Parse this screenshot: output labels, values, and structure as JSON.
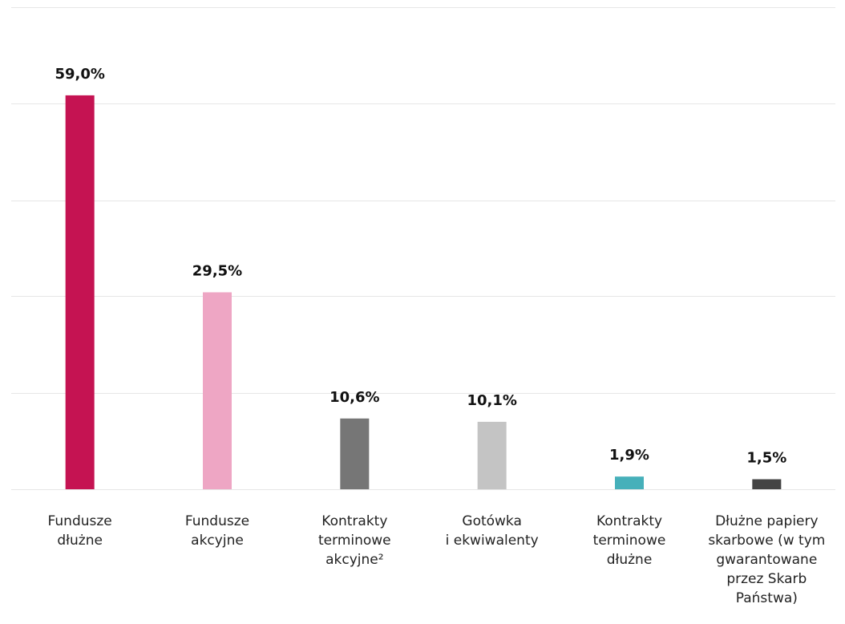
{
  "chart_data": {
    "type": "bar",
    "categories": [
      "Fundusze\ndłużne",
      "Fundusze\nakcyjne",
      "Kontrakty\nterminowe\nakcyjne²",
      "Gotówka\ni ekwiwalenty",
      "Kontrakty\nterminowe\ndłużne",
      "Dłużne papiery\nskarbowe (w tym\ngwarantowane\nprzez Skarb\nPaństwa)"
    ],
    "values": [
      59.0,
      29.5,
      10.6,
      10.1,
      1.9,
      1.5
    ],
    "value_labels": [
      "59,0%",
      "29,5%",
      "10,6%",
      "10,1%",
      "1,9%",
      "1,5%"
    ],
    "colors": [
      "#c51352",
      "#eea6c4",
      "#767676",
      "#c4c4c4",
      "#46b0ba",
      "#444444"
    ],
    "ylim": [
      0,
      72.2
    ],
    "yticks": [
      0,
      14.4,
      28.9,
      43.3,
      57.8,
      72.2
    ],
    "grid": true
  }
}
